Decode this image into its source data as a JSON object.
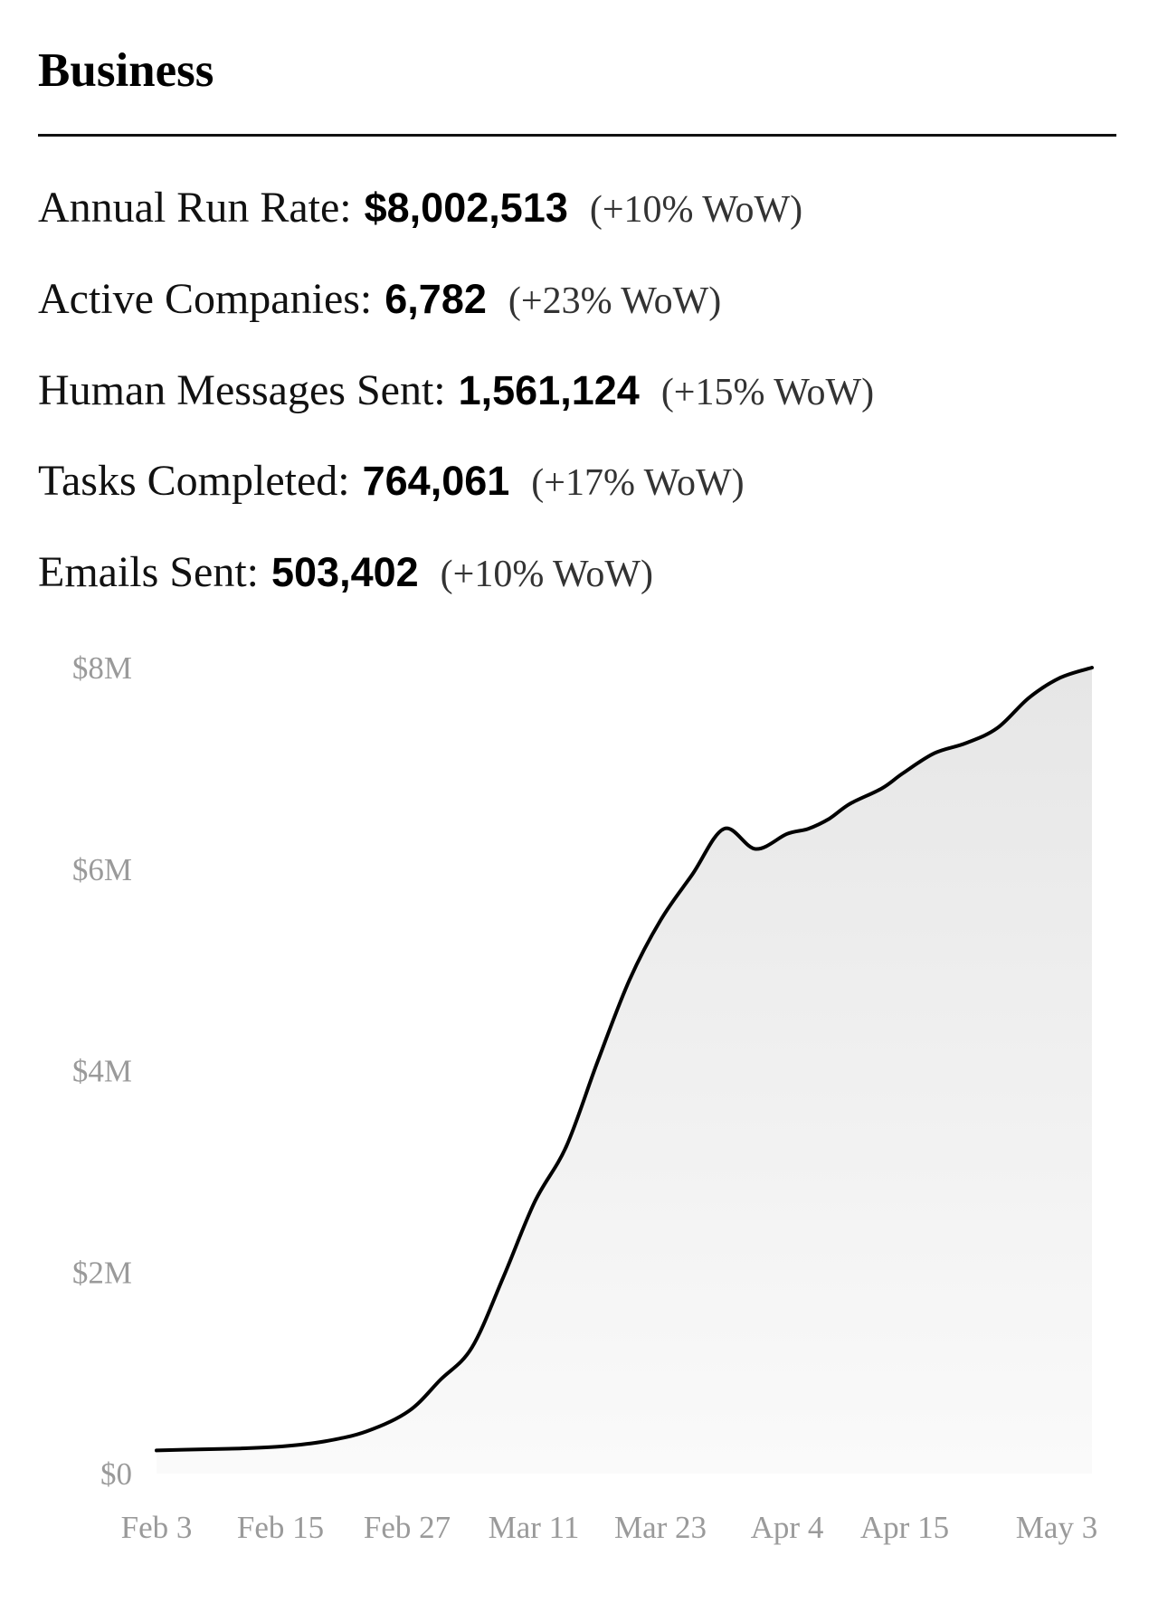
{
  "section": {
    "title": "Business"
  },
  "metrics": [
    {
      "label": "Annual Run Rate:",
      "value": "$8,002,513",
      "change": "(+10% WoW)"
    },
    {
      "label": "Active Companies:",
      "value": "6,782",
      "change": "(+23% WoW)"
    },
    {
      "label": "Human Messages Sent:",
      "value": "1,561,124",
      "change": "(+15% WoW)"
    },
    {
      "label": "Tasks Completed:",
      "value": "764,061",
      "change": "(+17% WoW)"
    },
    {
      "label": "Emails Sent:",
      "value": "503,402",
      "change": "(+10% WoW)"
    }
  ],
  "chart_data": {
    "type": "area",
    "title": "",
    "xlabel": "",
    "ylabel": "",
    "x_tick_labels": [
      "Feb 3",
      "Feb 15",
      "Feb 27",
      "Mar 11",
      "Mar 23",
      "Apr 4",
      "Apr 15",
      "May 3"
    ],
    "y_tick_labels": [
      "$0",
      "$2M",
      "$4M",
      "$6M",
      "$8M"
    ],
    "y_ticks": [
      0,
      2000000,
      4000000,
      6000000,
      8000000
    ],
    "ylim": [
      0,
      8000000
    ],
    "grid": false,
    "line_color": "#000000",
    "fill_color_top": "#e6e6e6",
    "fill_color_bottom": "#fafafa",
    "series": [
      {
        "x": [
          "Feb 3",
          "Feb 7",
          "Feb 11",
          "Feb 15",
          "Feb 19",
          "Feb 23",
          "Feb 27",
          "Mar 2",
          "Mar 5",
          "Mar 8",
          "Mar 11",
          "Mar 14",
          "Mar 17",
          "Mar 20",
          "Mar 23",
          "Mar 26",
          "Mar 29",
          "Apr 1",
          "Apr 4",
          "Apr 6",
          "Apr 8",
          "Apr 10",
          "Apr 13",
          "Apr 15",
          "Apr 18",
          "Apr 21",
          "Apr 24",
          "Apr 27",
          "Apr 30",
          "May 3"
        ],
        "values": [
          230000,
          240000,
          250000,
          270000,
          320000,
          420000,
          620000,
          930000,
          1250000,
          1950000,
          2700000,
          3250000,
          4100000,
          4900000,
          5500000,
          5950000,
          6400000,
          6200000,
          6350000,
          6400000,
          6500000,
          6650000,
          6800000,
          6950000,
          7150000,
          7250000,
          7400000,
          7700000,
          7900000,
          8000000
        ]
      }
    ]
  }
}
